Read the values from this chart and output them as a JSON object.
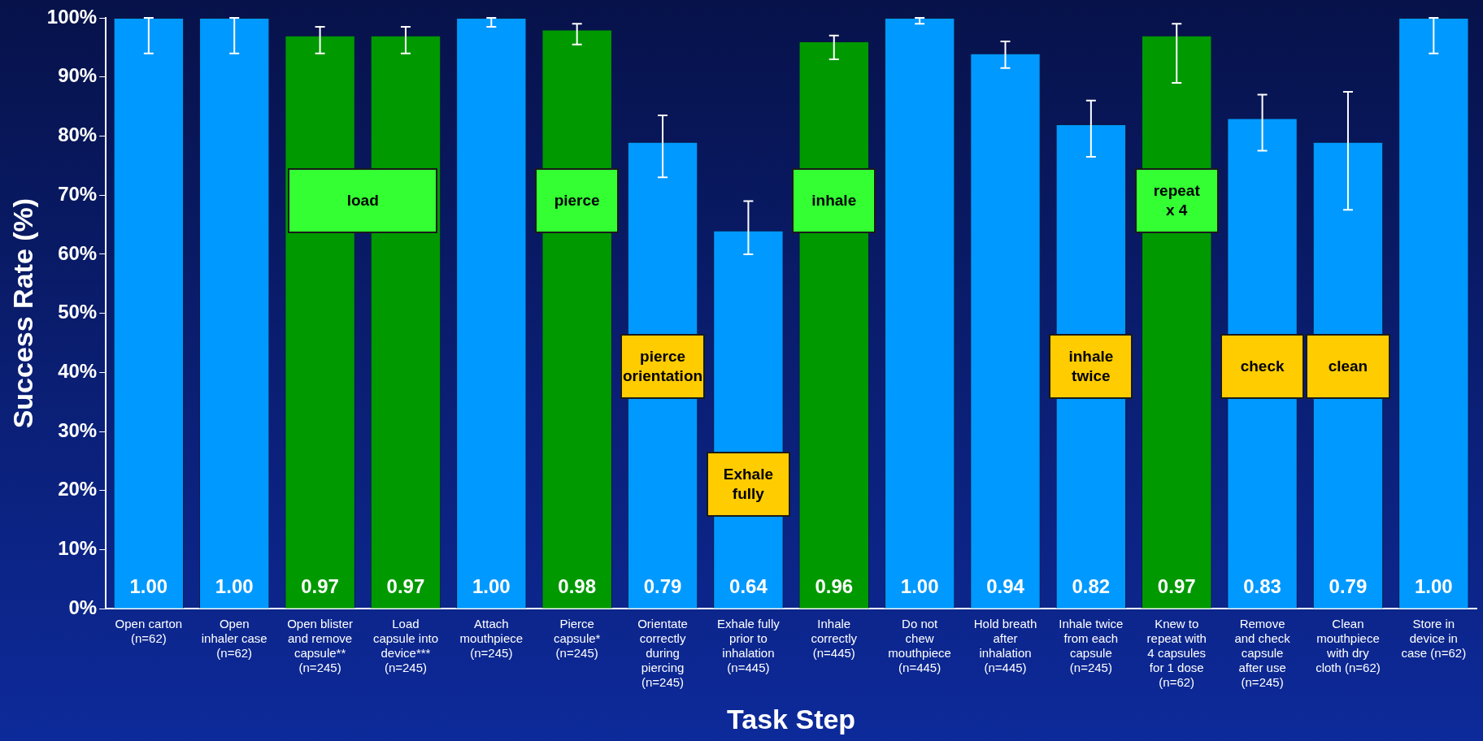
{
  "chart_data": {
    "type": "bar",
    "xlabel": "Task Step",
    "ylabel": "Success Rate (%)",
    "categories": [
      "Open carton\n(n=62)",
      "Open\ninhaler case\n(n=62)",
      "Open blister\nand remove\ncapsule**\n(n=245)",
      "Load\ncapsule into\ndevice***\n(n=245)",
      "Attach\nmouthpiece\n(n=245)",
      "Pierce\ncapsule*\n(n=245)",
      "Orientate\ncorrectly\nduring\npiercing\n(n=245)",
      "Exhale fully\nprior to\ninhalation\n(n=445)",
      "Inhale\ncorrectly\n(n=445)",
      "Do not\nchew\nmouthpiece\n(n=445)",
      "Hold breath\nafter\ninhalation\n(n=445)",
      "Inhale twice\nfrom each\ncapsule\n(n=245)",
      "Knew to\nrepeat with\n4 capsules\nfor 1 dose\n(n=62)",
      "Remove\nand check\ncapsule\nafter use\n(n=245)",
      "Clean\nmouthpiece\nwith dry\ncloth (n=62)",
      "Store in\ndevice in\ncase (n=62)"
    ],
    "values": [
      1.0,
      1.0,
      0.97,
      0.97,
      1.0,
      0.98,
      0.79,
      0.64,
      0.96,
      1.0,
      0.94,
      0.82,
      0.97,
      0.83,
      0.79,
      1.0
    ],
    "colors": [
      "#0099ff",
      "#0099ff",
      "#009900",
      "#009900",
      "#0099ff",
      "#009900",
      "#0099ff",
      "#0099ff",
      "#009900",
      "#0099ff",
      "#0099ff",
      "#0099ff",
      "#009900",
      "#0099ff",
      "#0099ff",
      "#0099ff"
    ],
    "value_labels": [
      "1.00",
      "1.00",
      "0.97",
      "0.97",
      "1.00",
      "0.98",
      "0.79",
      "0.64",
      "0.96",
      "1.00",
      "0.94",
      "0.82",
      "0.97",
      "0.83",
      "0.79",
      "1.00"
    ],
    "errors": [
      [
        0.94,
        1.0
      ],
      [
        0.94,
        1.0
      ],
      [
        0.94,
        0.985
      ],
      [
        0.94,
        0.985
      ],
      [
        0.985,
        1.0
      ],
      [
        0.955,
        0.99
      ],
      [
        0.73,
        0.835
      ],
      [
        0.6,
        0.69
      ],
      [
        0.93,
        0.97
      ],
      [
        0.99,
        1.0
      ],
      [
        0.915,
        0.96
      ],
      [
        0.765,
        0.86
      ],
      [
        0.89,
        0.99
      ],
      [
        0.775,
        0.87
      ],
      [
        0.675,
        0.875
      ],
      [
        0.94,
        1.0
      ]
    ],
    "ylim": [
      0,
      1
    ],
    "yticks": [
      {
        "value": 0,
        "label": "0%"
      },
      {
        "value": 0.1,
        "label": "10%"
      },
      {
        "value": 0.2,
        "label": "20%"
      },
      {
        "value": 0.3,
        "label": "30%"
      },
      {
        "value": 0.4,
        "label": "40%"
      },
      {
        "value": 0.5,
        "label": "50%"
      },
      {
        "value": 0.6,
        "label": "60%"
      },
      {
        "value": 0.7,
        "label": "70%"
      },
      {
        "value": 0.8,
        "label": "80%"
      },
      {
        "value": 0.9,
        "label": "90%"
      },
      {
        "value": 1,
        "label": "100%"
      }
    ],
    "grid": false,
    "legend": false,
    "annotations": [
      "load",
      "pierce",
      "inhale",
      "repeat\nx 4",
      "pierce\norientation",
      "Exhale\nfully",
      "inhale\ntwice",
      "check",
      "clean"
    ]
  }
}
